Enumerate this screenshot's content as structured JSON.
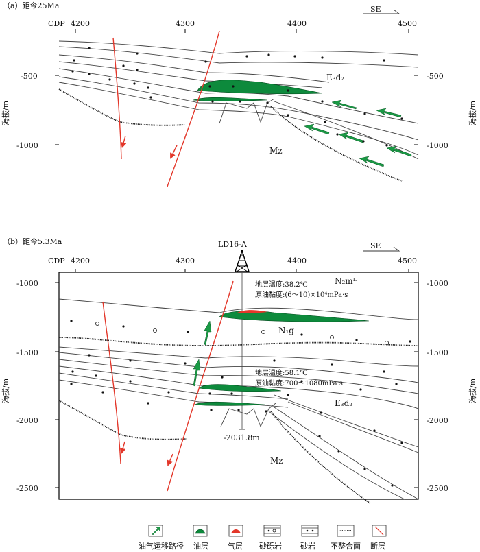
{
  "panel_a": {
    "title": "（a）距今25Ma",
    "cdp_label": "CDP",
    "cdp_ticks": [
      "4200",
      "4300",
      "4400",
      "4500"
    ],
    "direction": "SE",
    "y_ticks": [
      "-500",
      "-1000"
    ],
    "y_axis_label": "海拔/m",
    "unit_e3d2": "E₃d₂",
    "unit_mz": "Mz"
  },
  "panel_b": {
    "title": "（b）距今5.3Ma",
    "well": "LD16-A",
    "cdp_label": "CDP",
    "cdp_ticks": [
      "4200",
      "4300",
      "4400",
      "4500"
    ],
    "direction": "SE",
    "y_ticks": [
      "-1000",
      "-1500",
      "-2000",
      "-2500"
    ],
    "y_axis_label": "海拔/m",
    "unit_n2m": "N₂mᴸ",
    "unit_n1g": "N₁g",
    "unit_e3d2": "E₃d₂",
    "unit_mz": "Mz",
    "upper_temp": "地层温度:38.2℃",
    "upper_visc": "原油黏度:(6～10)×10⁴mPa·s",
    "lower_temp": "地层温度:58.1℃",
    "lower_visc": "原油黏度:700～1080mPa·s",
    "depth_mark": "-2031.8m"
  },
  "legend": [
    {
      "key": "migration",
      "label": "油气运移路径",
      "icon": "green-arrow-icon"
    },
    {
      "key": "oil",
      "label": "油层",
      "icon": "oil-layer-icon"
    },
    {
      "key": "gas",
      "label": "气层",
      "icon": "gas-layer-icon"
    },
    {
      "key": "gravel",
      "label": "砂砾岩",
      "icon": "gravel-sandstone-icon"
    },
    {
      "key": "sand",
      "label": "砂岩",
      "icon": "sandstone-icon"
    },
    {
      "key": "unconf",
      "label": "不整合面",
      "icon": "unconformity-icon"
    },
    {
      "key": "fault",
      "label": "断层",
      "icon": "fault-icon"
    }
  ],
  "colors": {
    "oil": "#0d8a3c",
    "gas": "#e3372a",
    "fault": "#e3372a"
  }
}
